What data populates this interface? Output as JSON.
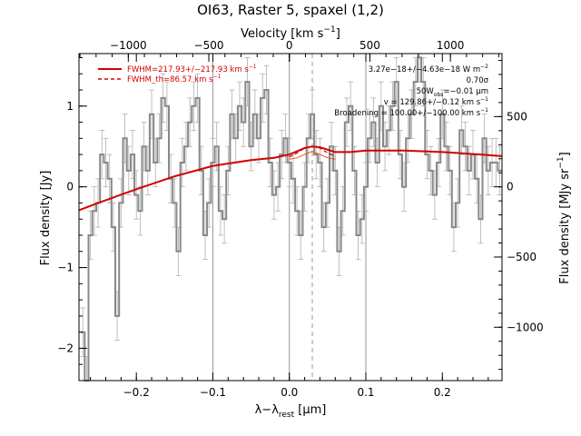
{
  "chart_data": {
    "type": "line",
    "title": "OI63, Raster 5, spaxel (1,2)",
    "xlabel_bottom": "λ−λ",
    "xlabel_bottom_sub": "rest",
    "xlabel_bottom_unit": "[μm]",
    "xlabel_top": "Velocity [km s",
    "xlabel_top_sup": "−1",
    "xlabel_top_end": "]",
    "ylabel_left": "Flux density [Jy]",
    "ylabel_right": "Flux density [MJy sr",
    "ylabel_right_sup": "−1",
    "ylabel_right_end": "]",
    "xlim": [
      -0.275,
      0.278
    ],
    "ylim": [
      -2.4,
      1.65
    ],
    "x_ticks": [
      -0.2,
      -0.1,
      0.0,
      0.1,
      0.2
    ],
    "x_tick_labels": [
      "−0.2",
      "−0.1",
      "0.0",
      "0.1",
      "0.2"
    ],
    "y_ticks": [
      -2,
      -1,
      0,
      1
    ],
    "y_tick_labels": [
      "−2",
      "−1",
      "0",
      "1"
    ],
    "top_ticks_kms": [
      -1000,
      -500,
      0,
      500,
      1000
    ],
    "top_tick_labels": [
      "−1000",
      "−500",
      "0",
      "500",
      "1000"
    ],
    "right_ticks": [
      -1000,
      -500,
      0,
      500
    ],
    "right_tick_labels": [
      "−1000",
      "−500",
      "0",
      "500"
    ],
    "right_scale_per_jy": 575.0,
    "velocity_scale_kms_per_um": 4750.0,
    "vertical_lines": [
      -0.1,
      0.0,
      0.1
    ],
    "dashed_line_x": 0.03,
    "legend": {
      "position": "top-left",
      "entries": [
        {
          "text": "FWHM=217.93+/−217.93 km s",
          "sup": "−1",
          "style": "solid"
        },
        {
          "text": "FWHM_th=86.57 km s",
          "sup": "−1",
          "style": "dashed"
        }
      ]
    },
    "annotations": [
      "3.27e−18+/−4.63e−18 W m",
      "−2",
      "0.70σ",
      "50W",
      "obs",
      "=−0.01 μm",
      "v = 129.86+/−0.12 km s",
      "−1",
      "Broadening = 100.00+/−100.00 km s",
      "−1"
    ],
    "data_series": {
      "name": "",
      "style": "steps",
      "color": "#888888",
      "x": [
        -0.27,
        -0.265,
        -0.26,
        -0.255,
        -0.25,
        -0.245,
        -0.24,
        -0.235,
        -0.23,
        -0.225,
        -0.22,
        -0.215,
        -0.21,
        -0.205,
        -0.2,
        -0.195,
        -0.19,
        -0.185,
        -0.18,
        -0.175,
        -0.17,
        -0.165,
        -0.16,
        -0.155,
        -0.15,
        -0.145,
        -0.14,
        -0.135,
        -0.13,
        -0.125,
        -0.12,
        -0.115,
        -0.11,
        -0.105,
        -0.1,
        -0.095,
        -0.09,
        -0.085,
        -0.08,
        -0.075,
        -0.07,
        -0.065,
        -0.06,
        -0.055,
        -0.05,
        -0.045,
        -0.04,
        -0.035,
        -0.03,
        -0.025,
        -0.02,
        -0.015,
        -0.01,
        -0.005,
        0.0,
        0.005,
        0.01,
        0.015,
        0.02,
        0.025,
        0.03,
        0.035,
        0.04,
        0.045,
        0.05,
        0.055,
        0.06,
        0.065,
        0.07,
        0.075,
        0.08,
        0.085,
        0.09,
        0.095,
        0.1,
        0.105,
        0.11,
        0.115,
        0.12,
        0.125,
        0.13,
        0.135,
        0.14,
        0.145,
        0.15,
        0.155,
        0.16,
        0.165,
        0.17,
        0.175,
        0.18,
        0.185,
        0.19,
        0.195,
        0.2,
        0.205,
        0.21,
        0.215,
        0.22,
        0.225,
        0.23,
        0.235,
        0.24,
        0.245,
        0.25,
        0.255,
        0.26,
        0.265,
        0.27,
        0.275
      ],
      "y": [
        -1.8,
        -2.4,
        -0.6,
        -0.3,
        -0.2,
        0.4,
        0.3,
        0.1,
        -0.5,
        -1.6,
        -0.2,
        0.6,
        0.2,
        0.4,
        -0.1,
        -0.3,
        0.5,
        0.2,
        0.9,
        0.3,
        0.6,
        1.1,
        1.0,
        0.1,
        -0.2,
        -0.8,
        0.3,
        0.5,
        0.8,
        1.0,
        1.1,
        0.2,
        -0.6,
        -0.2,
        0.3,
        0.5,
        -0.3,
        -0.4,
        0.2,
        0.9,
        0.6,
        1.0,
        0.8,
        1.3,
        0.5,
        0.9,
        0.6,
        1.1,
        1.2,
        0.3,
        -0.1,
        0.0,
        0.4,
        0.6,
        0.3,
        0.1,
        -0.3,
        -0.6,
        0.0,
        0.6,
        0.9,
        0.4,
        0.3,
        -0.5,
        -0.2,
        0.5,
        0.2,
        -0.8,
        -0.3,
        0.8,
        1.0,
        0.2,
        -0.6,
        -0.4,
        0.0,
        0.6,
        0.8,
        0.3,
        1.0,
        0.5,
        0.7,
        1.0,
        1.3,
        0.4,
        0.0,
        0.6,
        0.9,
        1.3,
        1.6,
        1.3,
        0.4,
        0.2,
        -0.1,
        0.3,
        0.9,
        0.5,
        0.2,
        -0.5,
        -0.2,
        0.7,
        0.5,
        0.2,
        0.4,
        0.1,
        -0.4,
        0.6,
        0.2,
        0.3,
        0.3,
        0.2
      ],
      "error": 0.3
    },
    "model_series": [
      {
        "name": "",
        "style": "solid",
        "color": "#d40000",
        "x": [
          -0.275,
          -0.25,
          -0.2,
          -0.15,
          -0.1,
          -0.05,
          -0.02,
          0.0,
          0.01,
          0.02,
          0.03,
          0.04,
          0.05,
          0.06,
          0.08,
          0.1,
          0.15,
          0.2,
          0.25,
          0.278
        ],
        "y": [
          -0.29,
          -0.2,
          -0.03,
          0.13,
          0.26,
          0.33,
          0.36,
          0.4,
          0.44,
          0.48,
          0.5,
          0.49,
          0.46,
          0.43,
          0.43,
          0.45,
          0.45,
          0.43,
          0.4,
          0.38
        ]
      },
      {
        "name": "",
        "style": "dashed",
        "color": "#d40000",
        "x": [
          0.0,
          0.01,
          0.02,
          0.03,
          0.04,
          0.05,
          0.06
        ],
        "y": [
          0.37,
          0.42,
          0.48,
          0.5,
          0.48,
          0.42,
          0.38
        ]
      },
      {
        "name": "",
        "style": "solid-thin",
        "color": "#e05020",
        "x": [
          0.0,
          0.01,
          0.02,
          0.03,
          0.04,
          0.05,
          0.06
        ],
        "y": [
          0.34,
          0.36,
          0.4,
          0.44,
          0.4,
          0.36,
          0.34
        ]
      }
    ]
  }
}
